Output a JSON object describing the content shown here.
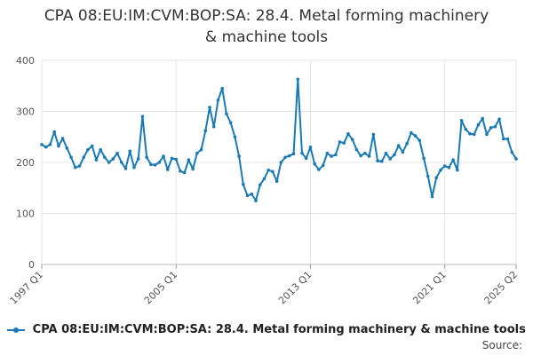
{
  "chart_data": {
    "type": "line",
    "title_lines": [
      "CPA 08:EU:IM:CVM:BOP:SA: 28.4. Metal forming machinery",
      "& machine tools"
    ],
    "xlabel": "",
    "ylabel": "",
    "ylim": [
      0,
      400
    ],
    "yticks": [
      "0",
      "100",
      "200",
      "300",
      "400"
    ],
    "xtick_labels": [
      "1997 Q1",
      "2005 Q1",
      "2013 Q1",
      "2021 Q1",
      "2025 Q2"
    ],
    "xtick_indices": [
      0,
      32,
      64,
      96,
      113
    ],
    "grid": true,
    "legend_position": "bottom",
    "series": [
      {
        "name": "CPA 08:EU:IM:CVM:BOP:SA: 28.4. Metal forming machinery & machine tools",
        "color": "#1a7ab5",
        "values": [
          235,
          230,
          235,
          260,
          232,
          247,
          228,
          210,
          190,
          193,
          210,
          225,
          232,
          205,
          225,
          210,
          200,
          207,
          218,
          200,
          188,
          222,
          190,
          207,
          290,
          210,
          196,
          195,
          200,
          212,
          186,
          208,
          206,
          183,
          180,
          205,
          187,
          218,
          225,
          262,
          308,
          270,
          322,
          345,
          295,
          278,
          250,
          212,
          157,
          135,
          138,
          125,
          156,
          168,
          185,
          182,
          163,
          200,
          210,
          213,
          217,
          363,
          218,
          208,
          230,
          197,
          186,
          194,
          218,
          212,
          215,
          240,
          238,
          256,
          245,
          225,
          213,
          218,
          212,
          255,
          203,
          202,
          218,
          207,
          215,
          233,
          220,
          237,
          258,
          252,
          243,
          208,
          173,
          133,
          170,
          185,
          193,
          190,
          205,
          185,
          282,
          265,
          256,
          255,
          274,
          286,
          255,
          268,
          270,
          285,
          246,
          246,
          220,
          207
        ]
      }
    ]
  },
  "legend": {
    "label": "CPA 08:EU:IM:CVM:BOP:SA: 28.4. Metal forming machinery & machine tools"
  },
  "source": {
    "label": "Source:"
  }
}
